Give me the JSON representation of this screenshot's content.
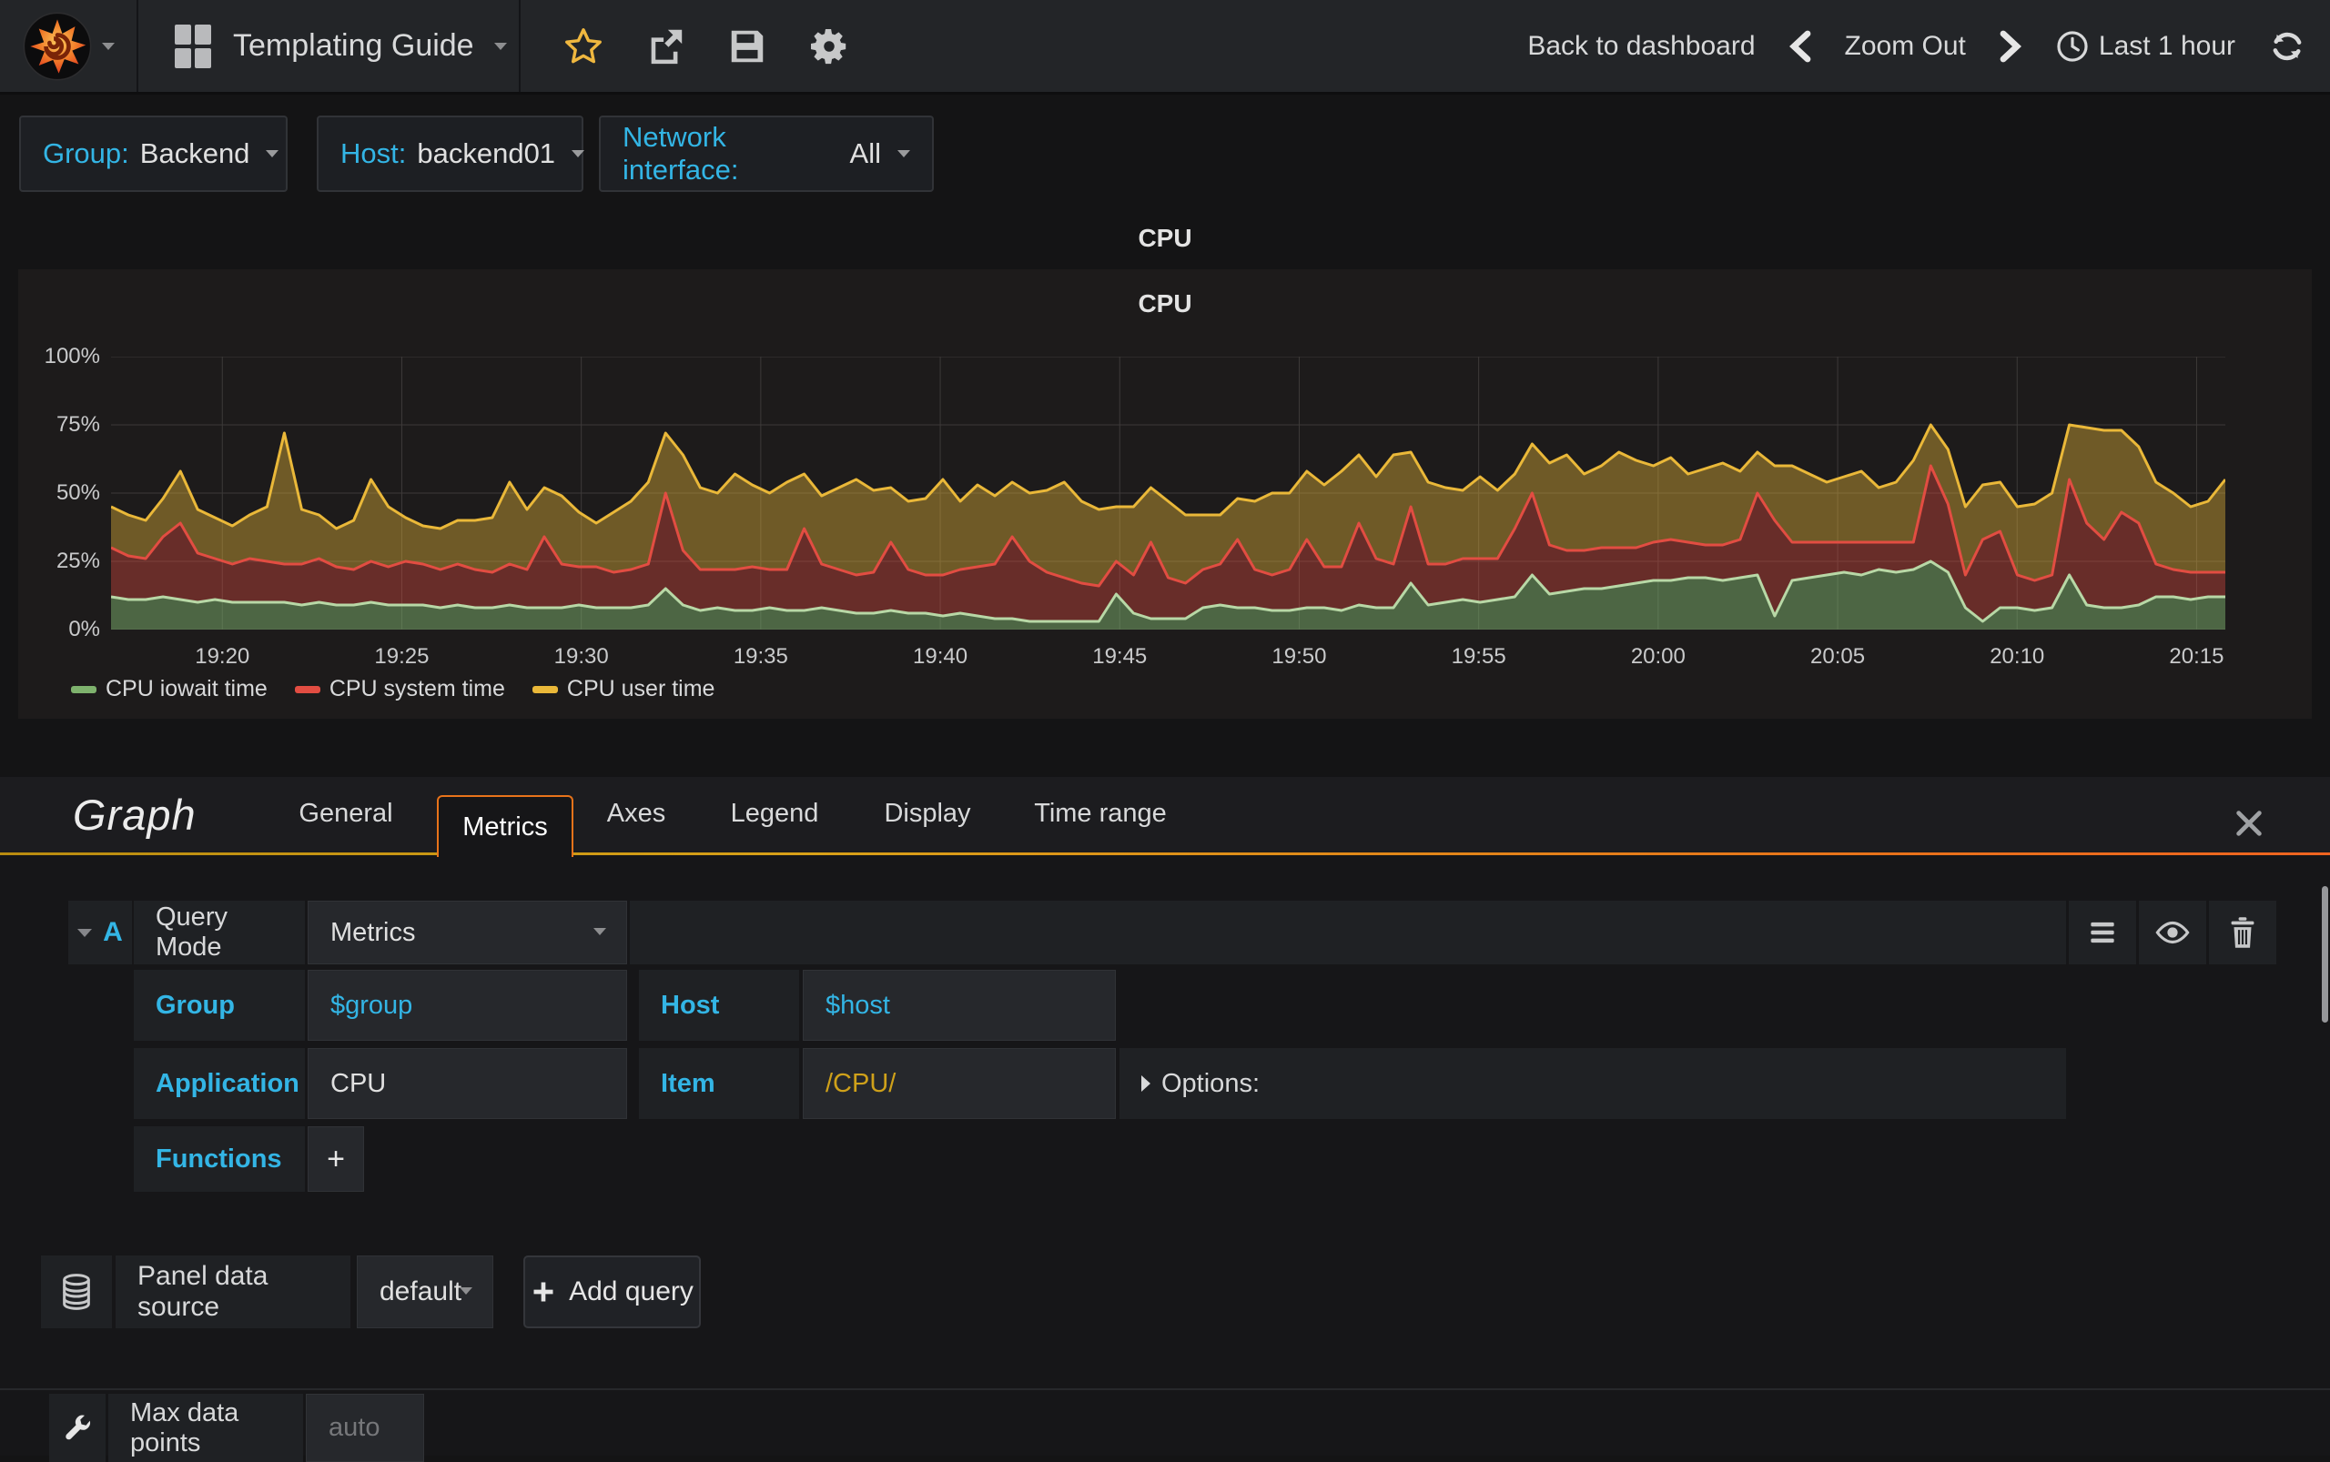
{
  "navbar": {
    "title": "Templating Guide",
    "back_to_dashboard": "Back to dashboard",
    "zoom_out": "Zoom Out",
    "time_range": "Last 1 hour"
  },
  "variables": [
    {
      "label": "Group:",
      "value": "Backend"
    },
    {
      "label": "Host:",
      "value": "backend01"
    },
    {
      "label": "Network interface:",
      "value": "All"
    }
  ],
  "panel": {
    "row_title": "CPU",
    "title": "CPU"
  },
  "chart_data": {
    "type": "area",
    "stacked": true,
    "title": "CPU",
    "xlabel": "",
    "ylabel": "percent",
    "ylim": [
      0,
      100
    ],
    "grid": true,
    "legend_position": "bottom-left",
    "x_domain_minutes": [
      0.9,
      59.8
    ],
    "x_ticks": [
      {
        "min": 4,
        "label": "19:20"
      },
      {
        "min": 9,
        "label": "19:25"
      },
      {
        "min": 14,
        "label": "19:30"
      },
      {
        "min": 19,
        "label": "19:35"
      },
      {
        "min": 24,
        "label": "19:40"
      },
      {
        "min": 29,
        "label": "19:45"
      },
      {
        "min": 34,
        "label": "19:50"
      },
      {
        "min": 39,
        "label": "19:55"
      },
      {
        "min": 44,
        "label": "20:00"
      },
      {
        "min": 49,
        "label": "20:05"
      },
      {
        "min": 54,
        "label": "20:10"
      },
      {
        "min": 59,
        "label": "20:15"
      }
    ],
    "y_ticks": [
      {
        "v": 0,
        "label": "0%"
      },
      {
        "v": 25,
        "label": "25%"
      },
      {
        "v": 50,
        "label": "50%"
      },
      {
        "v": 75,
        "label": "75%"
      },
      {
        "v": 100,
        "label": "100%"
      }
    ],
    "series": [
      {
        "name": "CPU iowait time",
        "color": "#7EB26D",
        "line": "#b8d8a6",
        "fill": "rgba(126,178,109,0.50)",
        "values": [
          12,
          11,
          11,
          12,
          11,
          10,
          11,
          10,
          10,
          10,
          10,
          9,
          10,
          9,
          9,
          10,
          9,
          9,
          9,
          8,
          9,
          8,
          8,
          9,
          8,
          8,
          8,
          9,
          8,
          8,
          8,
          9,
          15,
          9,
          7,
          8,
          7,
          7,
          8,
          7,
          7,
          8,
          7,
          6,
          6,
          7,
          6,
          6,
          5,
          6,
          5,
          4,
          4,
          3,
          3,
          3,
          3,
          3,
          13,
          6,
          4,
          4,
          4,
          8,
          9,
          8,
          8,
          7,
          7,
          8,
          8,
          7,
          9,
          8,
          8,
          17,
          9,
          10,
          11,
          10,
          11,
          12,
          20,
          13,
          14,
          15,
          15,
          16,
          17,
          18,
          18,
          19,
          19,
          18,
          19,
          20,
          5,
          18,
          19,
          20,
          21,
          20,
          22,
          21,
          22,
          25,
          21,
          8,
          3,
          8,
          8,
          7,
          8,
          20,
          9,
          8,
          8,
          9,
          12,
          12,
          11,
          12,
          12
        ]
      },
      {
        "name": "CPU system time",
        "color": "#E24D42",
        "line": "#e24d42",
        "fill": "rgba(226,77,66,0.38)",
        "values": [
          18,
          16,
          15,
          22,
          28,
          18,
          15,
          14,
          16,
          15,
          14,
          15,
          16,
          14,
          13,
          15,
          14,
          16,
          15,
          14,
          15,
          14,
          13,
          15,
          14,
          26,
          16,
          14,
          15,
          13,
          14,
          15,
          35,
          20,
          15,
          14,
          15,
          16,
          14,
          15,
          30,
          16,
          15,
          14,
          15,
          25,
          16,
          14,
          15,
          16,
          18,
          20,
          30,
          22,
          18,
          16,
          14,
          13,
          12,
          14,
          28,
          15,
          13,
          14,
          15,
          25,
          14,
          13,
          15,
          25,
          15,
          16,
          30,
          18,
          16,
          28,
          15,
          14,
          15,
          16,
          15,
          25,
          30,
          18,
          15,
          14,
          15,
          14,
          13,
          14,
          15,
          13,
          12,
          13,
          14,
          30,
          35,
          14,
          13,
          12,
          11,
          12,
          10,
          11,
          10,
          35,
          25,
          12,
          30,
          28,
          12,
          11,
          12,
          35,
          30,
          25,
          35,
          30,
          12,
          10,
          10,
          9,
          9
        ]
      },
      {
        "name": "CPU user time",
        "color": "#EAB839",
        "line": "#eab839",
        "fill": "rgba(234,184,57,0.40)",
        "values": [
          15,
          15,
          14,
          14,
          19,
          16,
          15,
          14,
          16,
          20,
          48,
          20,
          16,
          14,
          18,
          30,
          22,
          16,
          14,
          15,
          16,
          18,
          20,
          30,
          22,
          18,
          25,
          20,
          16,
          22,
          25,
          30,
          22,
          35,
          30,
          28,
          35,
          30,
          28,
          32,
          20,
          25,
          30,
          35,
          30,
          20,
          25,
          28,
          35,
          25,
          30,
          25,
          20,
          25,
          30,
          35,
          30,
          28,
          20,
          25,
          20,
          28,
          25,
          20,
          18,
          15,
          25,
          30,
          28,
          25,
          30,
          35,
          25,
          30,
          40,
          20,
          30,
          28,
          25,
          30,
          25,
          20,
          18,
          30,
          35,
          28,
          30,
          35,
          32,
          28,
          30,
          25,
          28,
          30,
          25,
          15,
          20,
          28,
          25,
          22,
          24,
          26,
          20,
          22,
          30,
          15,
          20,
          25,
          20,
          18,
          25,
          28,
          30,
          20,
          35,
          40,
          30,
          28,
          30,
          28,
          24,
          26,
          34
        ]
      }
    ]
  },
  "editor": {
    "panel_type": "Graph",
    "tabs": [
      "General",
      "Metrics",
      "Axes",
      "Legend",
      "Display",
      "Time range"
    ],
    "active_tab": "Metrics",
    "query": {
      "ref": "A",
      "mode_label": "Query Mode",
      "mode_value": "Metrics",
      "fields": [
        {
          "label": "Group",
          "value": "$group"
        },
        {
          "label": "Host",
          "value": "$host"
        },
        {
          "label": "Application",
          "value": "CPU"
        },
        {
          "label": "Item",
          "value": "/CPU/"
        }
      ],
      "options_label": "Options:",
      "functions_label": "Functions",
      "add_function_label": "+"
    },
    "datasource": {
      "label": "Panel data source",
      "value": "default",
      "add_query_label": "Add query"
    },
    "max_data_points": {
      "label": "Max data points",
      "placeholder": "auto"
    }
  }
}
